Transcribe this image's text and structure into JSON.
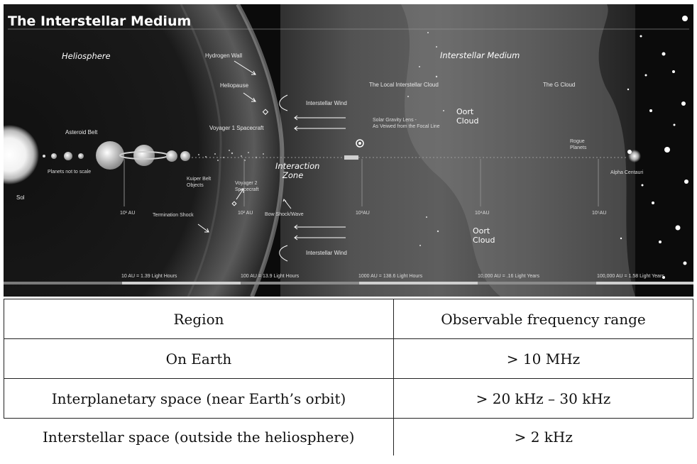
{
  "figure": {
    "title": "The Interstellar Medium",
    "labels": {
      "heliosphere": "Heliosphere",
      "interstellar_medium": "Interstellar Medium",
      "hydrogen_wall": "Hydrogen Wall",
      "heliopause": "Heliopause",
      "interstellar_wind_top": "Interstellar Wind",
      "interstellar_wind_bottom": "Interstellar Wind",
      "voyager1": "Voyager 1 Spacecraft",
      "local_cloud": "The Local Interstellar Cloud",
      "g_cloud": "The G Cloud",
      "oort_cloud_top": "Oort Cloud",
      "oort_cloud_bottom": "Oort Cloud",
      "asteroid_belt": "Asteroid Belt",
      "solar_gravity_lens": "Solar Gravity Lens - As Veiwed from the Focal Line",
      "rogue_planets": "Rogue Planets",
      "interaction_zone": "Interaction Zone",
      "planets_not_to_scale": "Planets not to scale",
      "kuiper_belt": "Kuiper Belt Objects",
      "voyager2": "Voyager 2 Spacecraft",
      "alpha_centauri": "Alpha Centauri",
      "sol": "Sol",
      "termination_shock": "Termination Shock",
      "bow_shock": "Bow Shock/Wave"
    },
    "axis_ticks": [
      "10¹ AU",
      "10² AU",
      "10³AU",
      "10⁴AU",
      "10⁵AU"
    ],
    "scale_labels": [
      "10 AU = 1.39 Light Hours",
      "100 AU = 13.9 Light Hours",
      "1000 AU = 138.6 Light Hours",
      "10,000 AU = .16 Light Years",
      "100,000 AU = 1.58 Light Years"
    ]
  },
  "table": {
    "header": {
      "region": "Region",
      "range": "Observable frequency range"
    },
    "rows": [
      {
        "region": "On Earth",
        "range": "> 10 MHz"
      },
      {
        "region": "Interplanetary space (near Earth’s orbit)",
        "range": "> 20 kHz – 30 kHz"
      },
      {
        "region": "Interstellar space (outside the heliosphere)",
        "range": "> 2 kHz"
      }
    ]
  },
  "colors": {
    "figure_bg": "#0b0b0b",
    "text_light": "#e8e8e8",
    "table_border": "#222222"
  }
}
